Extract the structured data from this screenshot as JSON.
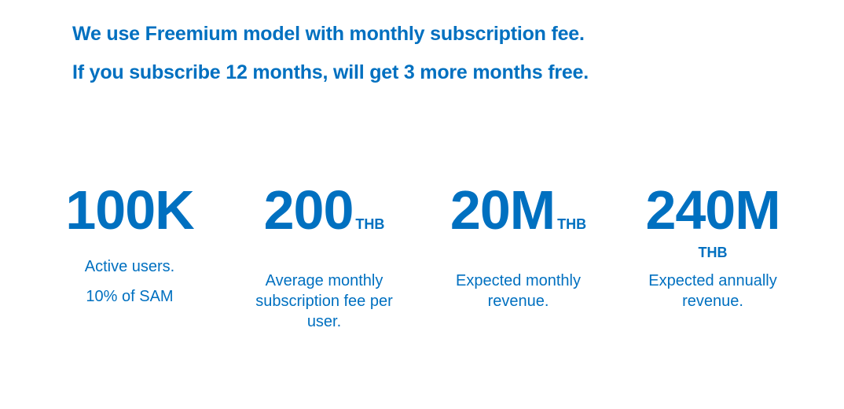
{
  "headline": {
    "line1": "We use Freemium model with monthly subscription fee.",
    "line2": "If you subscribe 12 months, will get 3 more months free."
  },
  "stats": [
    {
      "value": "100K",
      "unit": "",
      "description": "Active users.",
      "note": "10% of SAM"
    },
    {
      "value": "200",
      "unit": "THB",
      "description": "Average monthly subscription fee per user."
    },
    {
      "value": "20M",
      "unit": "THB",
      "description": "Expected monthly revenue."
    },
    {
      "value": "240M",
      "unit": "THB",
      "description": "Expected annually revenue."
    }
  ],
  "colors": {
    "text": "#0070c0",
    "background": "#ffffff"
  }
}
